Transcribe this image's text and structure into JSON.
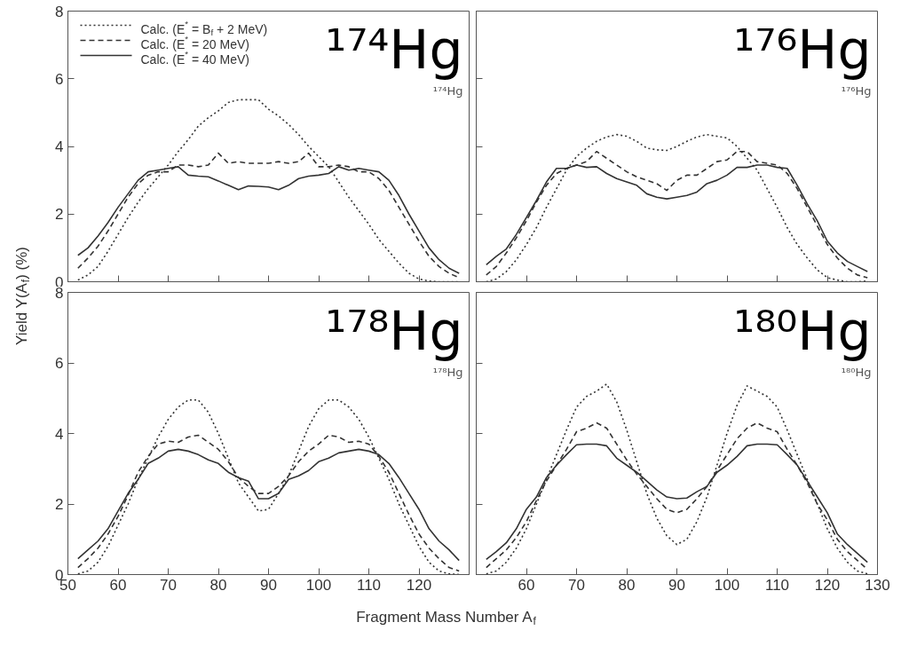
{
  "chart_data": [
    {
      "type": "line",
      "xlim": [
        50,
        130
      ],
      "ylim": [
        0,
        8
      ],
      "xticks": [
        50,
        60,
        70,
        80,
        90,
        100,
        110,
        120,
        130
      ],
      "yticks": [
        0,
        2,
        4,
        6,
        8
      ],
      "tick_labels": "y",
      "legend": "top left",
      "grid": false,
      "annotations": [
        "¹⁷⁴Hg",
        "¹⁷⁴Hg"
      ],
      "x": [
        52,
        54,
        56,
        58,
        60,
        62,
        64,
        66,
        68,
        70,
        72,
        74,
        76,
        78,
        80,
        82,
        84,
        86,
        88,
        90,
        92,
        94,
        96,
        98,
        100,
        102,
        104,
        106,
        108,
        110,
        112,
        114,
        116,
        118,
        120,
        122,
        124,
        126,
        128
      ],
      "series": [
        {
          "name": "Calc. (E$^{*}$ = B$_{f}$ + 2 MeV)",
          "color": "#333333",
          "line_style": "dotted",
          "values": [
            0.05,
            0.2,
            0.45,
            0.9,
            1.4,
            1.9,
            2.35,
            2.75,
            3.1,
            3.45,
            3.85,
            4.2,
            4.6,
            4.85,
            5.05,
            5.3,
            5.38,
            5.38,
            5.38,
            5.1,
            4.9,
            4.65,
            4.35,
            4.0,
            3.7,
            3.4,
            2.95,
            2.5,
            2.1,
            1.7,
            1.25,
            0.9,
            0.55,
            0.25,
            0.08,
            0.02,
            0.0,
            0.0,
            0.0
          ]
        },
        {
          "name": "Calc. (E$^{*}$ = 20 MeV)",
          "color": "#333333",
          "line_style": "dashed",
          "values": [
            0.4,
            0.7,
            1.05,
            1.5,
            2.0,
            2.5,
            2.9,
            3.15,
            3.25,
            3.25,
            3.45,
            3.45,
            3.4,
            3.45,
            3.8,
            3.5,
            3.55,
            3.5,
            3.5,
            3.5,
            3.55,
            3.5,
            3.55,
            3.8,
            3.4,
            3.4,
            3.45,
            3.4,
            3.25,
            3.25,
            3.05,
            2.7,
            2.2,
            1.7,
            1.2,
            0.75,
            0.45,
            0.25,
            0.12
          ]
        },
        {
          "name": "Calc. (E$^{*}$ = 40 MeV)",
          "color": "#333333",
          "line_style": "solid",
          "values": [
            0.78,
            1.0,
            1.35,
            1.75,
            2.2,
            2.6,
            3.0,
            3.25,
            3.3,
            3.35,
            3.4,
            3.15,
            3.12,
            3.1,
            2.98,
            2.85,
            2.72,
            2.83,
            2.82,
            2.8,
            2.72,
            2.85,
            3.05,
            3.12,
            3.15,
            3.2,
            3.4,
            3.3,
            3.35,
            3.3,
            3.25,
            3.0,
            2.55,
            2.0,
            1.5,
            1.0,
            0.65,
            0.4,
            0.25
          ]
        }
      ]
    },
    {
      "type": "line",
      "xlim": [
        50,
        130
      ],
      "ylim": [
        0,
        8
      ],
      "xticks": [
        50,
        60,
        70,
        80,
        90,
        100,
        110,
        120,
        130
      ],
      "yticks": [
        0,
        2,
        4,
        6,
        8
      ],
      "tick_labels": false,
      "grid": false,
      "annotations": [
        "¹⁷⁶Hg",
        "¹⁷⁶Hg"
      ],
      "x": [
        52,
        54,
        56,
        58,
        60,
        62,
        64,
        66,
        68,
        70,
        72,
        74,
        76,
        78,
        80,
        82,
        84,
        86,
        88,
        90,
        92,
        94,
        96,
        98,
        100,
        102,
        104,
        106,
        108,
        110,
        112,
        114,
        116,
        118,
        120,
        122,
        124,
        126,
        128
      ],
      "series": [
        {
          "color": "#333333",
          "line_style": "dotted",
          "values": [
            0.0,
            0.08,
            0.3,
            0.65,
            1.1,
            1.6,
            2.2,
            2.75,
            3.3,
            3.7,
            3.95,
            4.15,
            4.28,
            4.35,
            4.3,
            4.15,
            3.95,
            3.9,
            3.88,
            4.0,
            4.15,
            4.28,
            4.35,
            4.3,
            4.25,
            4.0,
            3.65,
            3.3,
            2.75,
            2.2,
            1.6,
            1.1,
            0.7,
            0.35,
            0.12,
            0.05,
            0.0,
            0.0,
            0.02
          ]
        },
        {
          "color": "#333333",
          "line_style": "dashed",
          "values": [
            0.2,
            0.45,
            0.85,
            1.3,
            1.8,
            2.35,
            2.85,
            3.2,
            3.35,
            3.45,
            3.55,
            3.85,
            3.65,
            3.45,
            3.25,
            3.1,
            3.0,
            2.9,
            2.7,
            3.0,
            3.15,
            3.15,
            3.35,
            3.55,
            3.6,
            3.85,
            3.85,
            3.55,
            3.5,
            3.45,
            3.2,
            2.75,
            2.2,
            1.65,
            1.1,
            0.7,
            0.4,
            0.2,
            0.12
          ]
        },
        {
          "color": "#333333",
          "line_style": "solid",
          "values": [
            0.5,
            0.75,
            0.97,
            1.4,
            1.9,
            2.4,
            2.95,
            3.35,
            3.35,
            3.45,
            3.38,
            3.4,
            3.2,
            3.05,
            2.95,
            2.85,
            2.6,
            2.5,
            2.45,
            2.5,
            2.55,
            2.65,
            2.9,
            3.0,
            3.15,
            3.38,
            3.38,
            3.45,
            3.45,
            3.38,
            3.35,
            2.85,
            2.3,
            1.8,
            1.2,
            0.85,
            0.6,
            0.45,
            0.3
          ]
        }
      ]
    },
    {
      "type": "line",
      "xlim": [
        50,
        130
      ],
      "ylim": [
        0,
        8
      ],
      "xticks": [
        50,
        60,
        70,
        80,
        90,
        100,
        110,
        120,
        {
          "value": 130,
          "label": null
        }
      ],
      "yticks": [
        0,
        2,
        4,
        6,
        8
      ],
      "grid": false,
      "xlabel": "Fragment Mass Number A$_{f}$",
      "ylabel": "Yield Y(A$_{f}$) (%)",
      "annotations": [
        "¹⁷⁸Hg",
        "¹⁷⁸Hg"
      ],
      "x": [
        52,
        54,
        56,
        58,
        60,
        62,
        64,
        66,
        68,
        70,
        72,
        74,
        76,
        78,
        80,
        82,
        84,
        86,
        88,
        90,
        92,
        94,
        96,
        98,
        100,
        102,
        104,
        106,
        108,
        110,
        112,
        114,
        116,
        118,
        120,
        122,
        124,
        126,
        128
      ],
      "series": [
        {
          "color": "#333333",
          "line_style": "dotted",
          "values": [
            0.02,
            0.1,
            0.35,
            0.8,
            1.4,
            2.0,
            2.7,
            3.3,
            3.9,
            4.4,
            4.75,
            4.95,
            4.95,
            4.6,
            4.0,
            3.3,
            2.6,
            2.2,
            1.8,
            1.85,
            2.3,
            2.8,
            3.5,
            4.2,
            4.7,
            4.95,
            4.95,
            4.75,
            4.4,
            3.9,
            3.3,
            2.7,
            2.0,
            1.4,
            0.8,
            0.35,
            0.1,
            0.02,
            0.0
          ]
        },
        {
          "color": "#333333",
          "line_style": "dashed",
          "values": [
            0.2,
            0.45,
            0.75,
            1.15,
            1.65,
            2.25,
            2.9,
            3.35,
            3.7,
            3.78,
            3.75,
            3.9,
            3.95,
            3.75,
            3.55,
            3.2,
            2.75,
            2.5,
            2.3,
            2.3,
            2.5,
            2.8,
            3.2,
            3.5,
            3.7,
            3.95,
            3.9,
            3.75,
            3.78,
            3.7,
            3.35,
            2.9,
            2.3,
            1.7,
            1.15,
            0.75,
            0.45,
            0.2,
            0.1
          ]
        },
        {
          "color": "#333333",
          "line_style": "solid",
          "values": [
            0.45,
            0.7,
            0.95,
            1.3,
            1.8,
            2.3,
            2.7,
            3.15,
            3.3,
            3.5,
            3.55,
            3.5,
            3.4,
            3.25,
            3.15,
            2.9,
            2.75,
            2.65,
            2.15,
            2.15,
            2.3,
            2.7,
            2.8,
            2.95,
            3.2,
            3.3,
            3.45,
            3.5,
            3.55,
            3.5,
            3.4,
            3.15,
            2.75,
            2.3,
            1.85,
            1.3,
            0.95,
            0.7,
            0.4
          ]
        }
      ]
    },
    {
      "type": "line",
      "xlim": [
        50,
        130
      ],
      "ylim": [
        0,
        8
      ],
      "xticks": [
        {
          "value": 50,
          "label": null
        },
        60,
        70,
        80,
        90,
        100,
        110,
        120,
        130
      ],
      "yticks": [
        0,
        2,
        4,
        6,
        8
      ],
      "tick_labels": "x",
      "grid": false,
      "annotations": [
        "¹⁸⁰Hg",
        "¹⁸⁰Hg"
      ],
      "x": [
        52,
        54,
        56,
        58,
        60,
        62,
        64,
        66,
        68,
        70,
        72,
        74,
        76,
        78,
        80,
        82,
        84,
        86,
        88,
        90,
        92,
        94,
        96,
        98,
        100,
        102,
        104,
        106,
        108,
        110,
        112,
        114,
        116,
        118,
        120,
        122,
        124,
        126,
        128
      ],
      "series": [
        {
          "color": "#333333",
          "line_style": "dotted",
          "values": [
            0.02,
            0.1,
            0.35,
            0.75,
            1.3,
            2.0,
            2.7,
            3.4,
            4.1,
            4.75,
            5.05,
            5.2,
            5.4,
            4.9,
            4.1,
            3.2,
            2.3,
            1.6,
            1.1,
            0.85,
            1.0,
            1.5,
            2.2,
            3.1,
            4.0,
            4.8,
            5.35,
            5.2,
            5.05,
            4.75,
            4.1,
            3.4,
            2.7,
            2.0,
            1.3,
            0.75,
            0.35,
            0.1,
            0.02
          ]
        },
        {
          "color": "#333333",
          "line_style": "dashed",
          "values": [
            0.2,
            0.45,
            0.7,
            1.05,
            1.5,
            2.1,
            2.65,
            3.1,
            3.55,
            4.05,
            4.15,
            4.3,
            4.15,
            3.7,
            3.25,
            2.85,
            2.5,
            2.15,
            1.85,
            1.75,
            1.85,
            2.15,
            2.5,
            2.95,
            3.4,
            3.85,
            4.15,
            4.3,
            4.15,
            4.05,
            3.55,
            3.1,
            2.6,
            2.0,
            1.55,
            1.0,
            0.65,
            0.4,
            0.15
          ]
        },
        {
          "color": "#333333",
          "line_style": "solid",
          "values": [
            0.43,
            0.65,
            0.9,
            1.3,
            1.85,
            2.2,
            2.75,
            3.1,
            3.4,
            3.68,
            3.7,
            3.7,
            3.65,
            3.3,
            3.1,
            2.9,
            2.65,
            2.4,
            2.2,
            2.15,
            2.17,
            2.35,
            2.5,
            2.9,
            3.1,
            3.35,
            3.65,
            3.7,
            3.7,
            3.68,
            3.4,
            3.1,
            2.65,
            2.2,
            1.75,
            1.15,
            0.85,
            0.6,
            0.35
          ]
        }
      ]
    }
  ]
}
